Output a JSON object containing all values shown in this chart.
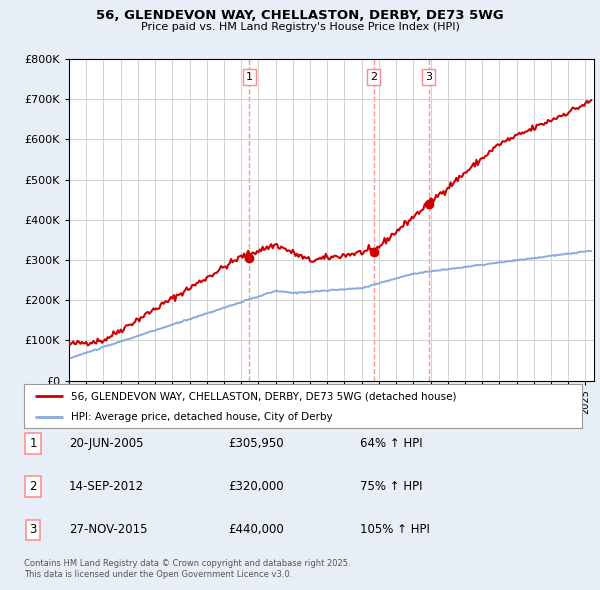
{
  "title": "56, GLENDEVON WAY, CHELLASTON, DERBY, DE73 5WG",
  "subtitle": "Price paid vs. HM Land Registry's House Price Index (HPI)",
  "ylim": [
    0,
    800000
  ],
  "yticks": [
    0,
    100000,
    200000,
    300000,
    400000,
    500000,
    600000,
    700000,
    800000
  ],
  "ytick_labels": [
    "£0",
    "£100K",
    "£200K",
    "£300K",
    "£400K",
    "£500K",
    "£600K",
    "£700K",
    "£800K"
  ],
  "house_color": "#cc0000",
  "hpi_color": "#88aadd",
  "vline_color": "#ff8888",
  "sale_dates": [
    "2005-06-20",
    "2012-09-14",
    "2015-11-27"
  ],
  "sale_prices": [
    305950,
    320000,
    440000
  ],
  "sale_labels": [
    "1",
    "2",
    "3"
  ],
  "legend_house": "56, GLENDEVON WAY, CHELLASTON, DERBY, DE73 5WG (detached house)",
  "legend_hpi": "HPI: Average price, detached house, City of Derby",
  "table_rows": [
    [
      "1",
      "20-JUN-2005",
      "£305,950",
      "64% ↑ HPI"
    ],
    [
      "2",
      "14-SEP-2012",
      "£320,000",
      "75% ↑ HPI"
    ],
    [
      "3",
      "27-NOV-2015",
      "£440,000",
      "105% ↑ HPI"
    ]
  ],
  "footnote": "Contains HM Land Registry data © Crown copyright and database right 2025.\nThis data is licensed under the Open Government Licence v3.0.",
  "background_color": "#e8eef8",
  "plot_bg_color": "#ffffff"
}
